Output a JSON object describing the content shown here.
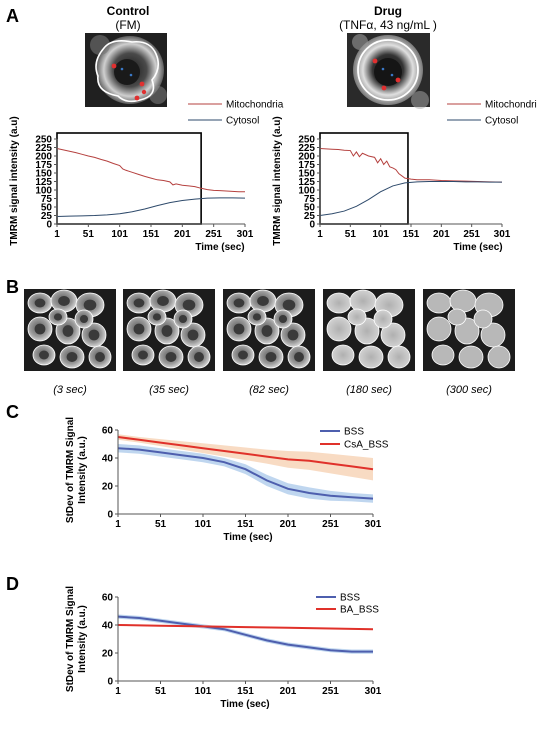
{
  "panels": {
    "A": "A",
    "B": "B",
    "C": "C",
    "D": "D"
  },
  "control_title": "Control",
  "control_subtitle": "(FM)",
  "drug_title": "Drug",
  "drug_subtitle": "(TNFα, 43 ng/mL )",
  "timelapse_captions": [
    "(3 sec)",
    "(35 sec)",
    "(82 sec)",
    "(180 sec)",
    "(300 sec)"
  ],
  "colors": {
    "mito": "#b5413f",
    "cyto": "#2e4a6b",
    "bss": "#4e5fae",
    "red": "#e0312a",
    "bss_band": "#a9c8ea",
    "red_band": "#f6cfaf"
  },
  "chart_data": [
    {
      "type": "line",
      "panel": "A-left",
      "xlabel": "Time (sec)",
      "ylabel": "TMRM signal intensity (a.u)",
      "xlim": [
        1,
        301
      ],
      "ylim": [
        0,
        250
      ],
      "xticks": [
        1,
        51,
        101,
        151,
        201,
        251,
        301
      ],
      "yticks": [
        0,
        25,
        50,
        75,
        100,
        125,
        150,
        175,
        200,
        225,
        250
      ],
      "legend_position": "top-right",
      "highlight_box_x": [
        1,
        231
      ],
      "series": [
        {
          "name": "Mitochondria",
          "x": [
            1,
            11,
            21,
            31,
            41,
            51,
            61,
            71,
            81,
            91,
            101,
            106,
            111,
            121,
            131,
            141,
            151,
            161,
            171,
            181,
            186,
            191,
            201,
            211,
            221,
            231,
            241,
            251,
            261,
            271,
            281,
            291,
            301
          ],
          "y": [
            222,
            218,
            214,
            210,
            205,
            200,
            196,
            190,
            185,
            178,
            172,
            162,
            158,
            152,
            146,
            140,
            135,
            130,
            128,
            124,
            115,
            118,
            114,
            112,
            110,
            105,
            101,
            99,
            98,
            97,
            96,
            95,
            95
          ]
        },
        {
          "name": "Cytosol",
          "x": [
            1,
            21,
            41,
            61,
            81,
            101,
            121,
            141,
            161,
            181,
            201,
            221,
            241,
            261,
            281,
            301
          ],
          "y": [
            22,
            23,
            24,
            25,
            27,
            30,
            36,
            44,
            54,
            63,
            69,
            73,
            76,
            77,
            77,
            76
          ]
        }
      ]
    },
    {
      "type": "line",
      "panel": "A-right",
      "xlabel": "Time (sec)",
      "ylabel": "TMRM signal intensity (a.u)",
      "xlim": [
        1,
        301
      ],
      "ylim": [
        0,
        250
      ],
      "xticks": [
        1,
        51,
        101,
        151,
        201,
        251,
        301
      ],
      "yticks": [
        0,
        25,
        50,
        75,
        100,
        125,
        150,
        175,
        200,
        225,
        250
      ],
      "legend_position": "top-right",
      "highlight_box_x": [
        1,
        146
      ],
      "series": [
        {
          "name": "Mitochondria",
          "x": [
            1,
            11,
            21,
            31,
            41,
            51,
            56,
            61,
            66,
            71,
            81,
            91,
            96,
            101,
            106,
            111,
            116,
            121,
            126,
            131,
            141,
            151,
            161,
            181,
            201,
            221,
            241,
            261,
            281,
            301
          ],
          "y": [
            222,
            221,
            220,
            219,
            217,
            216,
            200,
            212,
            198,
            208,
            200,
            196,
            180,
            192,
            175,
            185,
            168,
            165,
            160,
            148,
            135,
            132,
            130,
            130,
            128,
            127,
            126,
            125,
            124,
            123
          ]
        },
        {
          "name": "Cytosol",
          "x": [
            1,
            21,
            41,
            61,
            81,
            101,
            121,
            141,
            161,
            181,
            201,
            221,
            241,
            261,
            281,
            301
          ],
          "y": [
            25,
            30,
            38,
            52,
            72,
            95,
            112,
            121,
            124,
            125,
            125,
            125,
            124,
            124,
            123,
            123
          ]
        }
      ]
    },
    {
      "type": "line",
      "panel": "C",
      "xlabel": "Time (sec)",
      "ylabel": "StDev of TMRM Signal Intensity (a.u.)",
      "xlim": [
        1,
        301
      ],
      "ylim": [
        0,
        60
      ],
      "xticks": [
        1,
        51,
        101,
        151,
        201,
        251,
        301
      ],
      "yticks": [
        0,
        20,
        40,
        60
      ],
      "legend_position": "top-right",
      "series": [
        {
          "name": "BSS",
          "x": [
            1,
            26,
            51,
            76,
            101,
            126,
            151,
            176,
            201,
            226,
            251,
            276,
            301
          ],
          "y": [
            47,
            46,
            44,
            42,
            40,
            37,
            32,
            24,
            18,
            15,
            13,
            12,
            11
          ],
          "error": [
            3,
            3,
            3,
            3,
            3,
            3,
            3.5,
            4,
            4,
            4,
            3.5,
            3,
            3
          ]
        },
        {
          "name": "CsA_BSS",
          "x": [
            1,
            26,
            51,
            76,
            101,
            126,
            151,
            176,
            201,
            226,
            251,
            276,
            301
          ],
          "y": [
            55,
            53,
            51,
            49,
            47,
            45,
            43,
            41,
            39,
            38,
            36,
            34,
            32
          ],
          "error": [
            2,
            2,
            2.5,
            3,
            3.5,
            4,
            4.5,
            5,
            6,
            6.5,
            7,
            7.5,
            8
          ]
        }
      ]
    },
    {
      "type": "line",
      "panel": "D",
      "xlabel": "Time (sec)",
      "ylabel": "StDev of TMRM Signal Intensity (a.u.)",
      "xlim": [
        1,
        301
      ],
      "ylim": [
        0,
        60
      ],
      "xticks": [
        1,
        51,
        101,
        151,
        201,
        251,
        301
      ],
      "yticks": [
        0,
        20,
        40,
        60
      ],
      "legend_position": "top-right",
      "series": [
        {
          "name": "BSS",
          "x": [
            1,
            26,
            51,
            76,
            101,
            126,
            151,
            176,
            201,
            226,
            251,
            276,
            301
          ],
          "y": [
            46,
            45,
            43,
            41,
            39,
            37,
            33,
            29,
            26,
            24,
            22,
            21,
            21
          ],
          "error": [
            1.5,
            1.5,
            1.5,
            1.5,
            1.5,
            1.5,
            1.5,
            1.5,
            1.5,
            1.5,
            1.5,
            1.5,
            1.5
          ]
        },
        {
          "name": "BA_BSS",
          "x": [
            1,
            51,
            101,
            151,
            201,
            251,
            301
          ],
          "y": [
            40,
            39.5,
            39,
            38.5,
            38,
            37.5,
            37
          ],
          "error": [
            0.5,
            0.5,
            0.5,
            0.5,
            0.5,
            0.5,
            0.5
          ]
        }
      ]
    }
  ]
}
